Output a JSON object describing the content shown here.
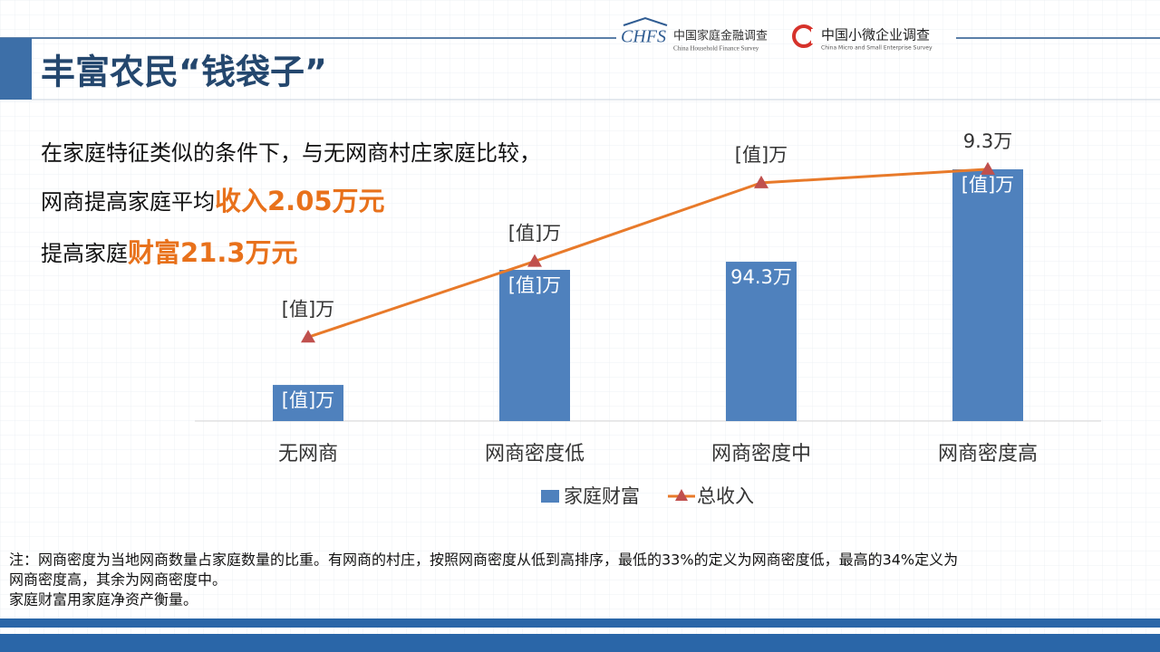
{
  "header": {
    "title": "丰富农民“钱袋子”",
    "logo1": {
      "mark": "CHFS",
      "name": "中国家庭金融调查",
      "english": "China Household Finance Survey"
    },
    "logo2": {
      "name": "中国小微企业调查",
      "english": "China Micro and Small Enterprise Survey"
    }
  },
  "intro": {
    "line1": "在家庭特征类似的条件下，与无网商村庄家庭比较，",
    "line2": "网商提高家庭平均",
    "line2_highlight": "收入2.05万元",
    "line3": "提高家庭",
    "line3_highlight": "财富21.3万元"
  },
  "chart_data": {
    "type": "bar_line",
    "categories": [
      "无网商",
      "网商密度低",
      "网商密度中",
      "网商密度高"
    ],
    "series": [
      {
        "name": "家庭财富",
        "type": "bar",
        "color": "#4f81bd",
        "values": [
          21.4,
          89.5,
          94.3,
          149
        ],
        "value_labels": [
          "[值]万",
          "[值]万",
          "94.3万",
          "[值]万"
        ]
      },
      {
        "name": "总收入",
        "type": "line",
        "axis": "y2",
        "color": "#e87a2a",
        "values": [
          3.1,
          5.9,
          8.8,
          9.3
        ],
        "value_labels": [
          "[值]万",
          "[值]万",
          "[值]万",
          "9.3万"
        ]
      }
    ],
    "legend": "bottom"
  },
  "notes": [
    "注：网商密度为当地网商数量占家庭数量的比重。有网商的村庄，按照网商密度从低到高排序，最低的33%的定义为网商密度低，最高的34%定义为",
    "网商密度高，其余为网商密度中。",
    "家庭财富用家庭净资产衡量。"
  ]
}
